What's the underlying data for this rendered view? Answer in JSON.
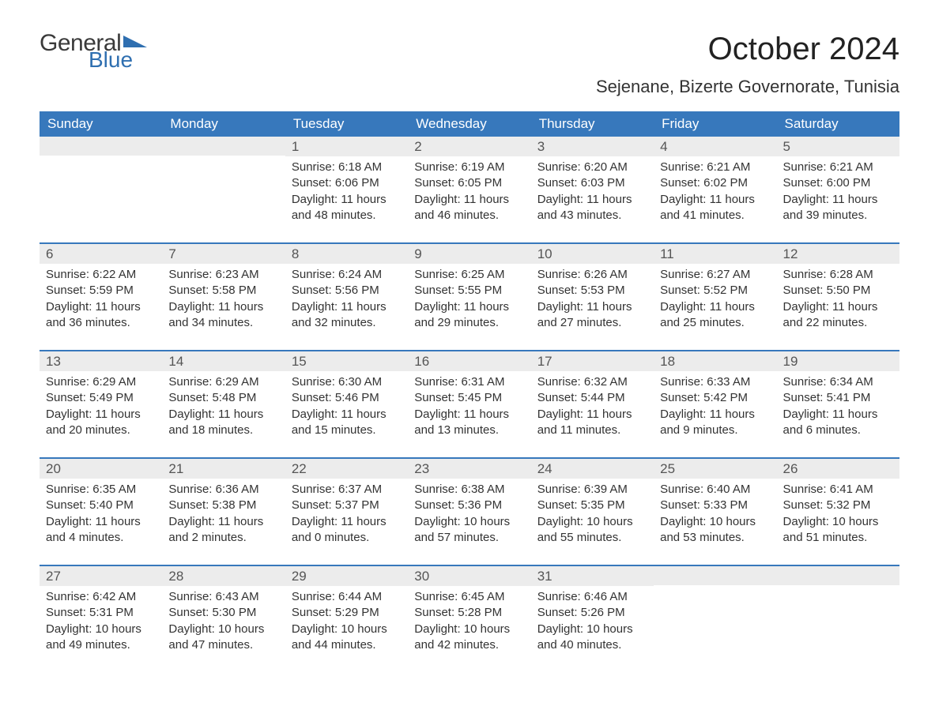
{
  "logo": {
    "text1": "General",
    "text2": "Blue",
    "flag_color": "#2f6fb0"
  },
  "title": "October 2024",
  "location": "Sejenane, Bizerte Governorate, Tunisia",
  "header_bg": "#3778bc",
  "band_bg": "#ececec",
  "weekdays": [
    "Sunday",
    "Monday",
    "Tuesday",
    "Wednesday",
    "Thursday",
    "Friday",
    "Saturday"
  ],
  "weeks": [
    [
      {
        "day": "",
        "sunrise": "",
        "sunset": "",
        "daylight": ""
      },
      {
        "day": "",
        "sunrise": "",
        "sunset": "",
        "daylight": ""
      },
      {
        "day": "1",
        "sunrise": "Sunrise: 6:18 AM",
        "sunset": "Sunset: 6:06 PM",
        "daylight": "Daylight: 11 hours and 48 minutes."
      },
      {
        "day": "2",
        "sunrise": "Sunrise: 6:19 AM",
        "sunset": "Sunset: 6:05 PM",
        "daylight": "Daylight: 11 hours and 46 minutes."
      },
      {
        "day": "3",
        "sunrise": "Sunrise: 6:20 AM",
        "sunset": "Sunset: 6:03 PM",
        "daylight": "Daylight: 11 hours and 43 minutes."
      },
      {
        "day": "4",
        "sunrise": "Sunrise: 6:21 AM",
        "sunset": "Sunset: 6:02 PM",
        "daylight": "Daylight: 11 hours and 41 minutes."
      },
      {
        "day": "5",
        "sunrise": "Sunrise: 6:21 AM",
        "sunset": "Sunset: 6:00 PM",
        "daylight": "Daylight: 11 hours and 39 minutes."
      }
    ],
    [
      {
        "day": "6",
        "sunrise": "Sunrise: 6:22 AM",
        "sunset": "Sunset: 5:59 PM",
        "daylight": "Daylight: 11 hours and 36 minutes."
      },
      {
        "day": "7",
        "sunrise": "Sunrise: 6:23 AM",
        "sunset": "Sunset: 5:58 PM",
        "daylight": "Daylight: 11 hours and 34 minutes."
      },
      {
        "day": "8",
        "sunrise": "Sunrise: 6:24 AM",
        "sunset": "Sunset: 5:56 PM",
        "daylight": "Daylight: 11 hours and 32 minutes."
      },
      {
        "day": "9",
        "sunrise": "Sunrise: 6:25 AM",
        "sunset": "Sunset: 5:55 PM",
        "daylight": "Daylight: 11 hours and 29 minutes."
      },
      {
        "day": "10",
        "sunrise": "Sunrise: 6:26 AM",
        "sunset": "Sunset: 5:53 PM",
        "daylight": "Daylight: 11 hours and 27 minutes."
      },
      {
        "day": "11",
        "sunrise": "Sunrise: 6:27 AM",
        "sunset": "Sunset: 5:52 PM",
        "daylight": "Daylight: 11 hours and 25 minutes."
      },
      {
        "day": "12",
        "sunrise": "Sunrise: 6:28 AM",
        "sunset": "Sunset: 5:50 PM",
        "daylight": "Daylight: 11 hours and 22 minutes."
      }
    ],
    [
      {
        "day": "13",
        "sunrise": "Sunrise: 6:29 AM",
        "sunset": "Sunset: 5:49 PM",
        "daylight": "Daylight: 11 hours and 20 minutes."
      },
      {
        "day": "14",
        "sunrise": "Sunrise: 6:29 AM",
        "sunset": "Sunset: 5:48 PM",
        "daylight": "Daylight: 11 hours and 18 minutes."
      },
      {
        "day": "15",
        "sunrise": "Sunrise: 6:30 AM",
        "sunset": "Sunset: 5:46 PM",
        "daylight": "Daylight: 11 hours and 15 minutes."
      },
      {
        "day": "16",
        "sunrise": "Sunrise: 6:31 AM",
        "sunset": "Sunset: 5:45 PM",
        "daylight": "Daylight: 11 hours and 13 minutes."
      },
      {
        "day": "17",
        "sunrise": "Sunrise: 6:32 AM",
        "sunset": "Sunset: 5:44 PM",
        "daylight": "Daylight: 11 hours and 11 minutes."
      },
      {
        "day": "18",
        "sunrise": "Sunrise: 6:33 AM",
        "sunset": "Sunset: 5:42 PM",
        "daylight": "Daylight: 11 hours and 9 minutes."
      },
      {
        "day": "19",
        "sunrise": "Sunrise: 6:34 AM",
        "sunset": "Sunset: 5:41 PM",
        "daylight": "Daylight: 11 hours and 6 minutes."
      }
    ],
    [
      {
        "day": "20",
        "sunrise": "Sunrise: 6:35 AM",
        "sunset": "Sunset: 5:40 PM",
        "daylight": "Daylight: 11 hours and 4 minutes."
      },
      {
        "day": "21",
        "sunrise": "Sunrise: 6:36 AM",
        "sunset": "Sunset: 5:38 PM",
        "daylight": "Daylight: 11 hours and 2 minutes."
      },
      {
        "day": "22",
        "sunrise": "Sunrise: 6:37 AM",
        "sunset": "Sunset: 5:37 PM",
        "daylight": "Daylight: 11 hours and 0 minutes."
      },
      {
        "day": "23",
        "sunrise": "Sunrise: 6:38 AM",
        "sunset": "Sunset: 5:36 PM",
        "daylight": "Daylight: 10 hours and 57 minutes."
      },
      {
        "day": "24",
        "sunrise": "Sunrise: 6:39 AM",
        "sunset": "Sunset: 5:35 PM",
        "daylight": "Daylight: 10 hours and 55 minutes."
      },
      {
        "day": "25",
        "sunrise": "Sunrise: 6:40 AM",
        "sunset": "Sunset: 5:33 PM",
        "daylight": "Daylight: 10 hours and 53 minutes."
      },
      {
        "day": "26",
        "sunrise": "Sunrise: 6:41 AM",
        "sunset": "Sunset: 5:32 PM",
        "daylight": "Daylight: 10 hours and 51 minutes."
      }
    ],
    [
      {
        "day": "27",
        "sunrise": "Sunrise: 6:42 AM",
        "sunset": "Sunset: 5:31 PM",
        "daylight": "Daylight: 10 hours and 49 minutes."
      },
      {
        "day": "28",
        "sunrise": "Sunrise: 6:43 AM",
        "sunset": "Sunset: 5:30 PM",
        "daylight": "Daylight: 10 hours and 47 minutes."
      },
      {
        "day": "29",
        "sunrise": "Sunrise: 6:44 AM",
        "sunset": "Sunset: 5:29 PM",
        "daylight": "Daylight: 10 hours and 44 minutes."
      },
      {
        "day": "30",
        "sunrise": "Sunrise: 6:45 AM",
        "sunset": "Sunset: 5:28 PM",
        "daylight": "Daylight: 10 hours and 42 minutes."
      },
      {
        "day": "31",
        "sunrise": "Sunrise: 6:46 AM",
        "sunset": "Sunset: 5:26 PM",
        "daylight": "Daylight: 10 hours and 40 minutes."
      },
      {
        "day": "",
        "sunrise": "",
        "sunset": "",
        "daylight": ""
      },
      {
        "day": "",
        "sunrise": "",
        "sunset": "",
        "daylight": ""
      }
    ]
  ]
}
